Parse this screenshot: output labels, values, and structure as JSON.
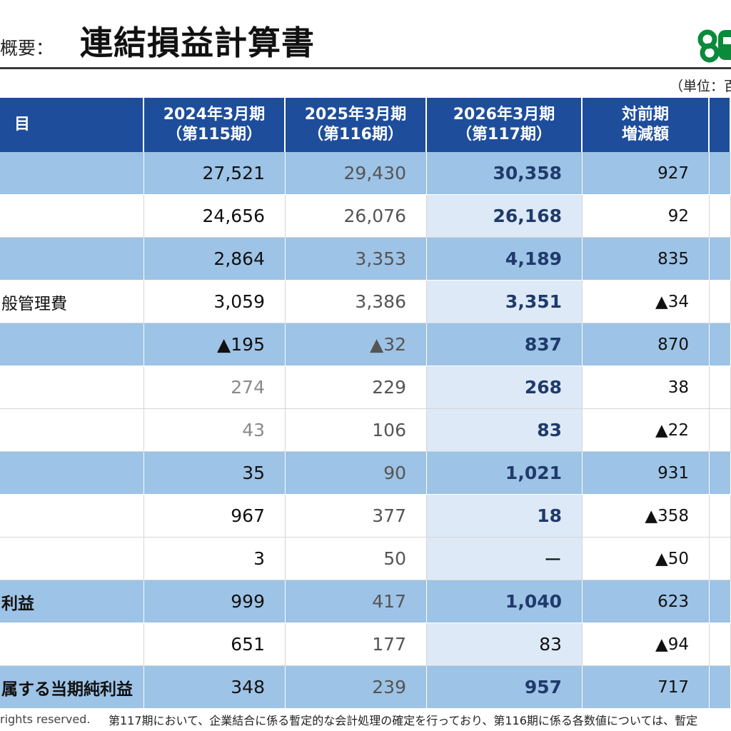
{
  "header": {
    "prefix": "概要：",
    "title": "連結損益計算書",
    "unit": "（単位：百"
  },
  "logo": {
    "icon": "green-company-logo-icon",
    "color": "#0a8a3a"
  },
  "table": {
    "headers": [
      {
        "line1": "目",
        "line2": ""
      },
      {
        "line1": "2024年3月期",
        "line2": "（第115期）"
      },
      {
        "line1": "2025年3月期",
        "line2": "（第116期）"
      },
      {
        "line1": "2026年3月期",
        "line2": "（第117期）"
      },
      {
        "line1": "対前期",
        "line2": "増減額"
      },
      {
        "line1": "",
        "line2": ""
      }
    ],
    "rows": [
      {
        "label": "",
        "fy2024": "27,521",
        "fy2025": "29,430",
        "fy2026": "30,358",
        "change": "927"
      },
      {
        "label": "",
        "fy2024": "24,656",
        "fy2025": "26,076",
        "fy2026": "26,168",
        "change": "92"
      },
      {
        "label": "",
        "fy2024": "2,864",
        "fy2025": "3,353",
        "fy2026": "4,189",
        "change": "835"
      },
      {
        "label": "般管理費",
        "fy2024": "3,059",
        "fy2025": "3,386",
        "fy2026": "3,351",
        "change": "▲34"
      },
      {
        "label": "",
        "fy2024": "▲195",
        "fy2025": "▲32",
        "fy2026": "837",
        "change": "870"
      },
      {
        "label": "",
        "fy2024": "274",
        "fy2025": "229",
        "fy2026": "268",
        "change": "38"
      },
      {
        "label": "",
        "fy2024": "43",
        "fy2025": "106",
        "fy2026": "83",
        "change": "▲22"
      },
      {
        "label": "",
        "fy2024": "35",
        "fy2025": "90",
        "fy2026": "1,021",
        "change": "931"
      },
      {
        "label": "",
        "fy2024": "967",
        "fy2025": "377",
        "fy2026": "18",
        "change": "▲358"
      },
      {
        "label": "",
        "fy2024": "3",
        "fy2025": "50",
        "fy2026": "ー",
        "change": "▲50"
      },
      {
        "label": "利益",
        "fy2024": "999",
        "fy2025": "417",
        "fy2026": "1,040",
        "change": "623"
      },
      {
        "label": "",
        "fy2024": "651",
        "fy2025": "177",
        "fy2026": "83",
        "change": "▲94"
      },
      {
        "label": "属する当期純利益",
        "fy2024": "348",
        "fy2025": "239",
        "fy2026": "957",
        "change": "717"
      }
    ]
  },
  "footer": {
    "copyright": "rights reserved.",
    "note": "第117期において、企業結合に係る暫定的な会計処理の確定を行っており、第116期に係る各数値については、暫定"
  }
}
